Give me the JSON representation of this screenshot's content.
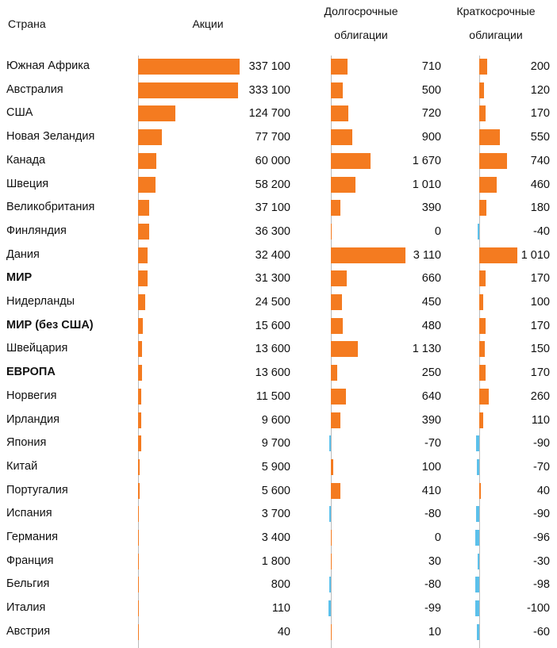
{
  "chart_data": {
    "type": "bar",
    "orientation": "horizontal",
    "colors": {
      "positive": "#F47B20",
      "negative": "#5BC0EB"
    },
    "headers": {
      "country": "Страна",
      "stocks": "Акции",
      "long_bonds_1": "Долгосрочные",
      "long_bonds_2": "облигации",
      "short_bonds_1": "Краткосрочные",
      "short_bonds_2": "облигации"
    },
    "categories": [
      "Южная Африка",
      "Австралия",
      "США",
      "Новая Зеландия",
      "Канада",
      "Швеция",
      "Великобритания",
      "Финляндия",
      "Дания",
      "МИР",
      "Нидерланды",
      "МИР (без США)",
      "Швейцария",
      "ЕВРОПА",
      "Норвегия",
      "Ирландия",
      "Япония",
      "Китай",
      "Португалия",
      "Испания",
      "Германия",
      "Франция",
      "Бельгия",
      "Италия",
      "Австрия"
    ],
    "bold_categories": [
      "МИР",
      "МИР (без США)",
      "ЕВРОПА"
    ],
    "series": [
      {
        "name": "Акции",
        "values": [
          337100,
          333100,
          124700,
          77700,
          60000,
          58200,
          37100,
          36300,
          32400,
          31300,
          24500,
          15600,
          13600,
          13600,
          11500,
          9600,
          9700,
          5900,
          5600,
          3700,
          3400,
          1800,
          800,
          110,
          40
        ],
        "labels": [
          "337 100",
          "333 100",
          "124 700",
          "77 700",
          "60 000",
          "58 200",
          "37 100",
          "36 300",
          "32 400",
          "31 300",
          "24 500",
          "15 600",
          "13 600",
          "13 600",
          "11 500",
          "9 600",
          "9 700",
          "5 900",
          "5 600",
          "3 700",
          "3 400",
          "1 800",
          "800",
          "110",
          "40"
        ]
      },
      {
        "name": "Долгосрочные облигации",
        "values": [
          710,
          500,
          720,
          900,
          1670,
          1010,
          390,
          0,
          3110,
          660,
          450,
          480,
          1130,
          250,
          640,
          390,
          -70,
          100,
          410,
          -80,
          0,
          30,
          -80,
          -99,
          10
        ],
        "labels": [
          "710",
          "500",
          "720",
          "900",
          "1 670",
          "1 010",
          "390",
          "0",
          "3 110",
          "660",
          "450",
          "480",
          "1 130",
          "250",
          "640",
          "390",
          "-70",
          "100",
          "410",
          "-80",
          "0",
          "30",
          "-80",
          "-99",
          "10"
        ]
      },
      {
        "name": "Краткосрочные облигации",
        "values": [
          200,
          120,
          170,
          550,
          740,
          460,
          180,
          -40,
          1010,
          170,
          100,
          170,
          150,
          170,
          260,
          110,
          -90,
          -70,
          40,
          -90,
          -96,
          -30,
          -98,
          -100,
          -60
        ],
        "labels": [
          "200",
          "120",
          "170",
          "550",
          "740",
          "460",
          "180",
          "-40",
          "1 010",
          "170",
          "100",
          "170",
          "150",
          "170",
          "260",
          "110",
          "-90",
          "-70",
          "40",
          "-90",
          "-96",
          "-30",
          "-98",
          "-100",
          "-60"
        ]
      }
    ]
  }
}
